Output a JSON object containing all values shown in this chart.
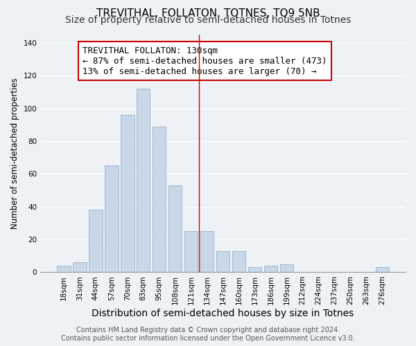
{
  "title": "TREVITHAL, FOLLATON, TOTNES, TQ9 5NB",
  "subtitle": "Size of property relative to semi-detached houses in Totnes",
  "xlabel": "Distribution of semi-detached houses by size in Totnes",
  "ylabel": "Number of semi-detached properties",
  "bar_labels": [
    "18sqm",
    "31sqm",
    "44sqm",
    "57sqm",
    "70sqm",
    "83sqm",
    "95sqm",
    "108sqm",
    "121sqm",
    "134sqm",
    "147sqm",
    "160sqm",
    "173sqm",
    "186sqm",
    "199sqm",
    "212sqm",
    "224sqm",
    "237sqm",
    "250sqm",
    "263sqm",
    "276sqm"
  ],
  "bar_values": [
    4,
    6,
    38,
    65,
    96,
    112,
    89,
    53,
    25,
    25,
    13,
    13,
    3,
    4,
    5,
    0,
    0,
    0,
    0,
    0,
    3
  ],
  "bar_color": "#c8d8e8",
  "bar_edge_color": "#9ab0c4",
  "ylim": [
    0,
    145
  ],
  "annotation_box_text": "TREVITHAL FOLLATON: 130sqm\n← 87% of semi-detached houses are smaller (473)\n13% of semi-detached houses are larger (70) →",
  "annotation_box_edge_color": "#cc0000",
  "vline_color": "#cc0000",
  "vline_x": 8.5,
  "footer_line1": "Contains HM Land Registry data © Crown copyright and database right 2024.",
  "footer_line2": "Contains public sector information licensed under the Open Government Licence v3.0.",
  "background_color": "#eef2f7",
  "title_fontsize": 11,
  "subtitle_fontsize": 10,
  "annotation_fontsize": 9,
  "tick_fontsize": 7.5,
  "xlabel_fontsize": 10,
  "ylabel_fontsize": 8.5,
  "footer_fontsize": 7
}
